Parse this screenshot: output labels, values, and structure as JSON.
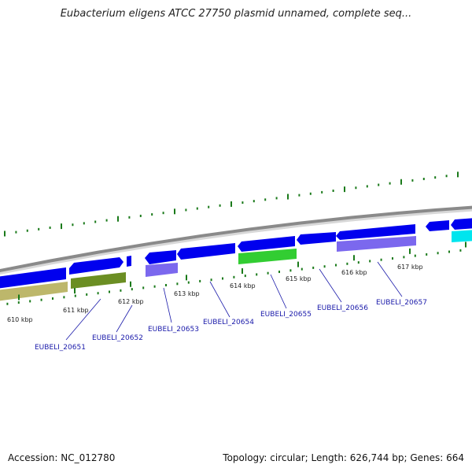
{
  "title": "Eubacterium eligens ATCC 27750 plasmid unnamed, complete seq...",
  "footer": {
    "accession": "Accession: NC_012780",
    "summary": "Topology: circular; Length: 626,744 bp; Genes: 664"
  },
  "colors": {
    "background": "#ffffff",
    "backbone": "#8a8a8a",
    "tick": "#1a7a1a",
    "gene_cds": "#0000ee",
    "gene_olive": "#6b8e23",
    "gene_khaki": "#bdb76b",
    "gene_slate": "#7b68ee",
    "gene_green": "#32cd32",
    "gene_cyan": "#00e5ee",
    "label_text": "#1a1aaa"
  },
  "axis_labels": [
    "610 kbp",
    "611 kbp",
    "612 kbp",
    "613 kbp",
    "614 kbp",
    "615 kbp",
    "616 kbp",
    "617 kbp"
  ],
  "gene_labels": [
    "EUBELI_20651",
    "EUBELI_20652",
    "EUBELI_20653",
    "EUBELI_20654",
    "EUBELI_20655",
    "EUBELI_20656",
    "EUBELI_20657"
  ]
}
